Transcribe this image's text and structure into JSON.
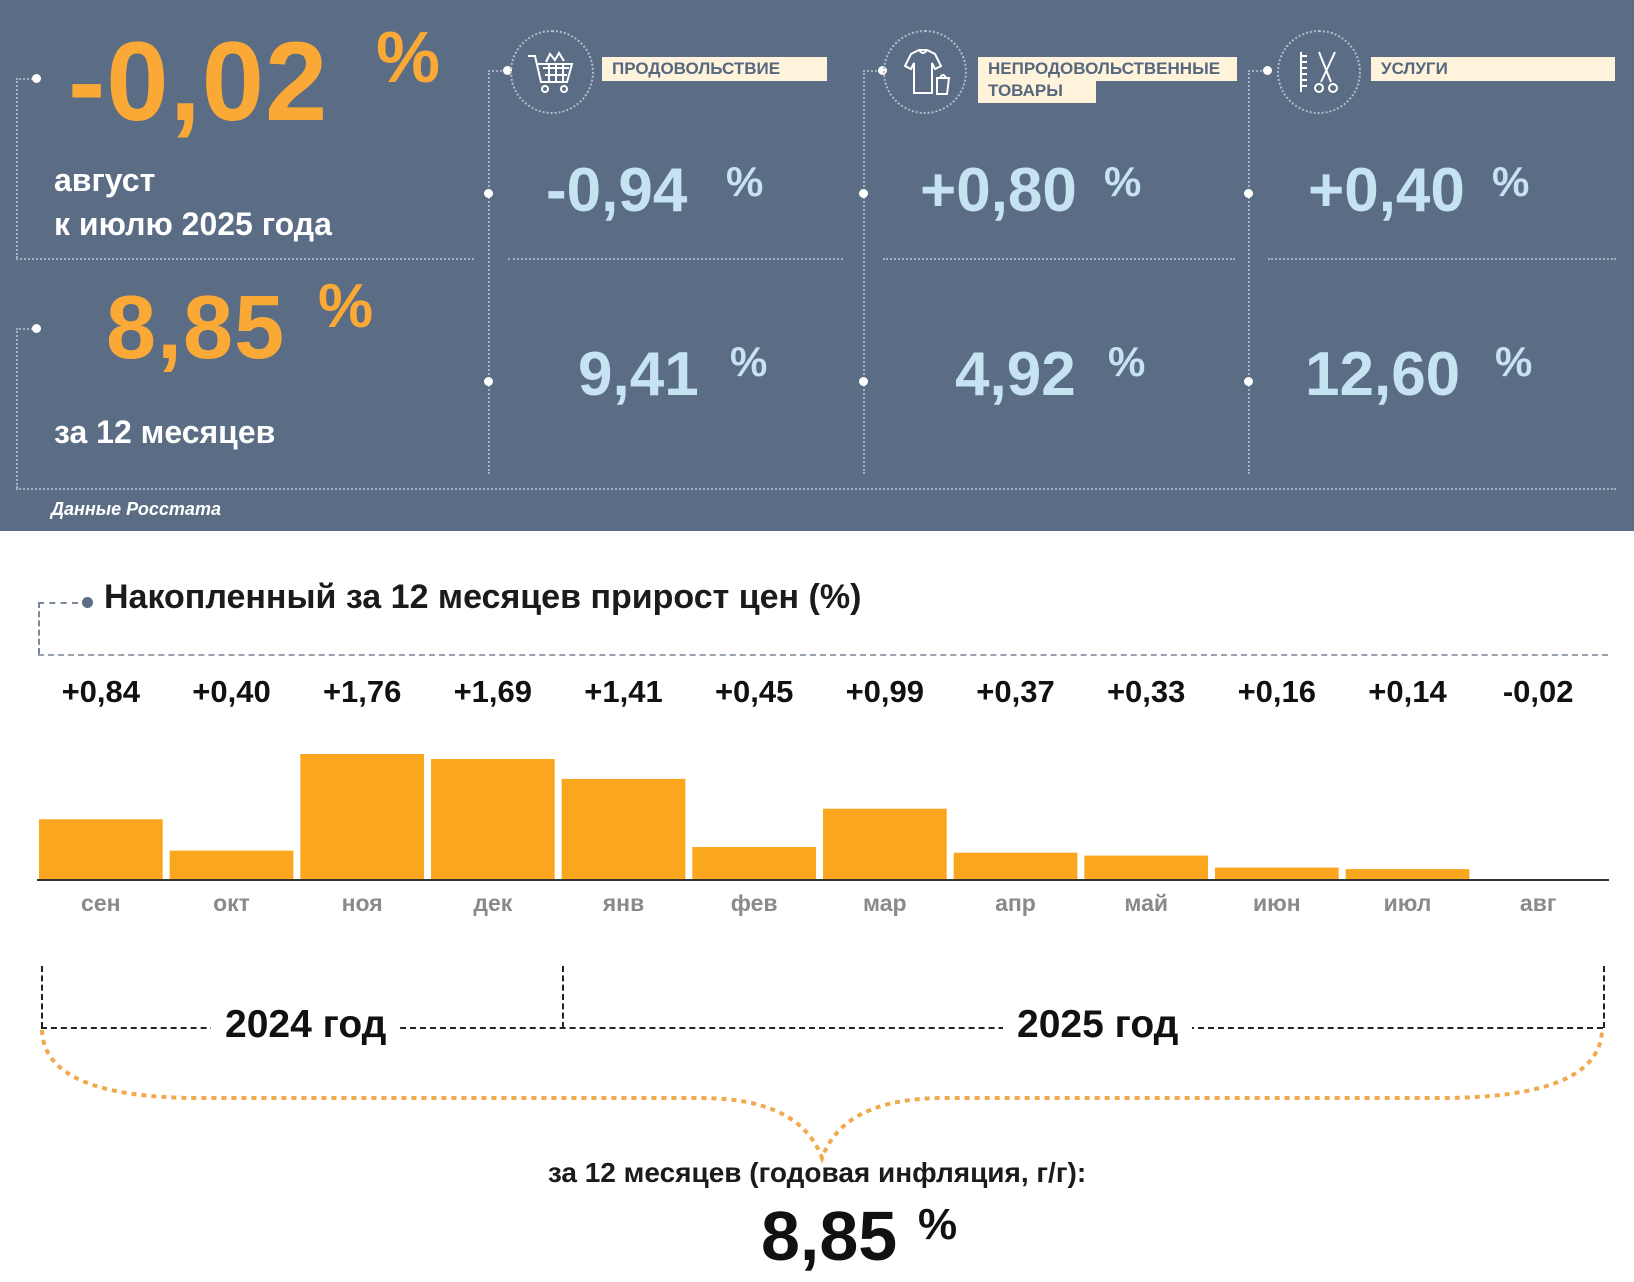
{
  "top": {
    "monthly": {
      "value": "-0,02",
      "unit": "%",
      "label_line1": "август",
      "label_line2": "к июлю 2025 года"
    },
    "annual": {
      "value": "8,85",
      "unit": "%",
      "label": "за 12 месяцев"
    },
    "categories": [
      {
        "name": "ПРОДОВОЛЬСТВИЕ",
        "icon": "shopping-cart-icon",
        "monthly": "-0,94",
        "annual": "9,41",
        "unit": "%"
      },
      {
        "name_line1": "НЕПРОДОВОЛЬСТВЕННЫЕ",
        "name_line2": "ТОВАРЫ",
        "icon": "clothing-icon",
        "monthly": "+0,80",
        "annual": "4,92",
        "unit": "%"
      },
      {
        "name": "УСЛУГИ",
        "icon": "scissors-comb-icon",
        "monthly": "+0,40",
        "annual": "12,60",
        "unit": "%"
      }
    ],
    "source": "Данные Росстата"
  },
  "colors": {
    "panel_bg": "#5a6d84",
    "orange": "#fba936",
    "light_blue": "#c6e3f2",
    "bar": "#faa61f"
  },
  "chart_data": {
    "type": "bar",
    "title": "Накопленный за 12 месяцев прирост цен (%)",
    "categories": [
      "сен",
      "окт",
      "ноя",
      "дек",
      "янв",
      "фев",
      "мар",
      "апр",
      "май",
      "июн",
      "июл",
      "авг"
    ],
    "values": [
      0.84,
      0.4,
      1.76,
      1.69,
      1.41,
      0.45,
      0.99,
      0.37,
      0.33,
      0.16,
      0.14,
      -0.02
    ],
    "value_labels": [
      "+0,84",
      "+0,40",
      "+1,76",
      "+1,69",
      "+1,41",
      "+0,45",
      "+0,99",
      "+0,37",
      "+0,33",
      "+0,16",
      "+0,14",
      "-0,02"
    ],
    "year_groups": [
      {
        "label": "2024 год",
        "months": [
          "сен",
          "окт",
          "ноя",
          "дек"
        ]
      },
      {
        "label": "2025 год",
        "months": [
          "янв",
          "фев",
          "мар",
          "апр",
          "май",
          "июн",
          "июл",
          "авг"
        ]
      }
    ],
    "grid": false
  },
  "summary": {
    "caption": "за 12 месяцев (годовая инфляция, г/г):",
    "value": "8,85",
    "unit": "%"
  }
}
